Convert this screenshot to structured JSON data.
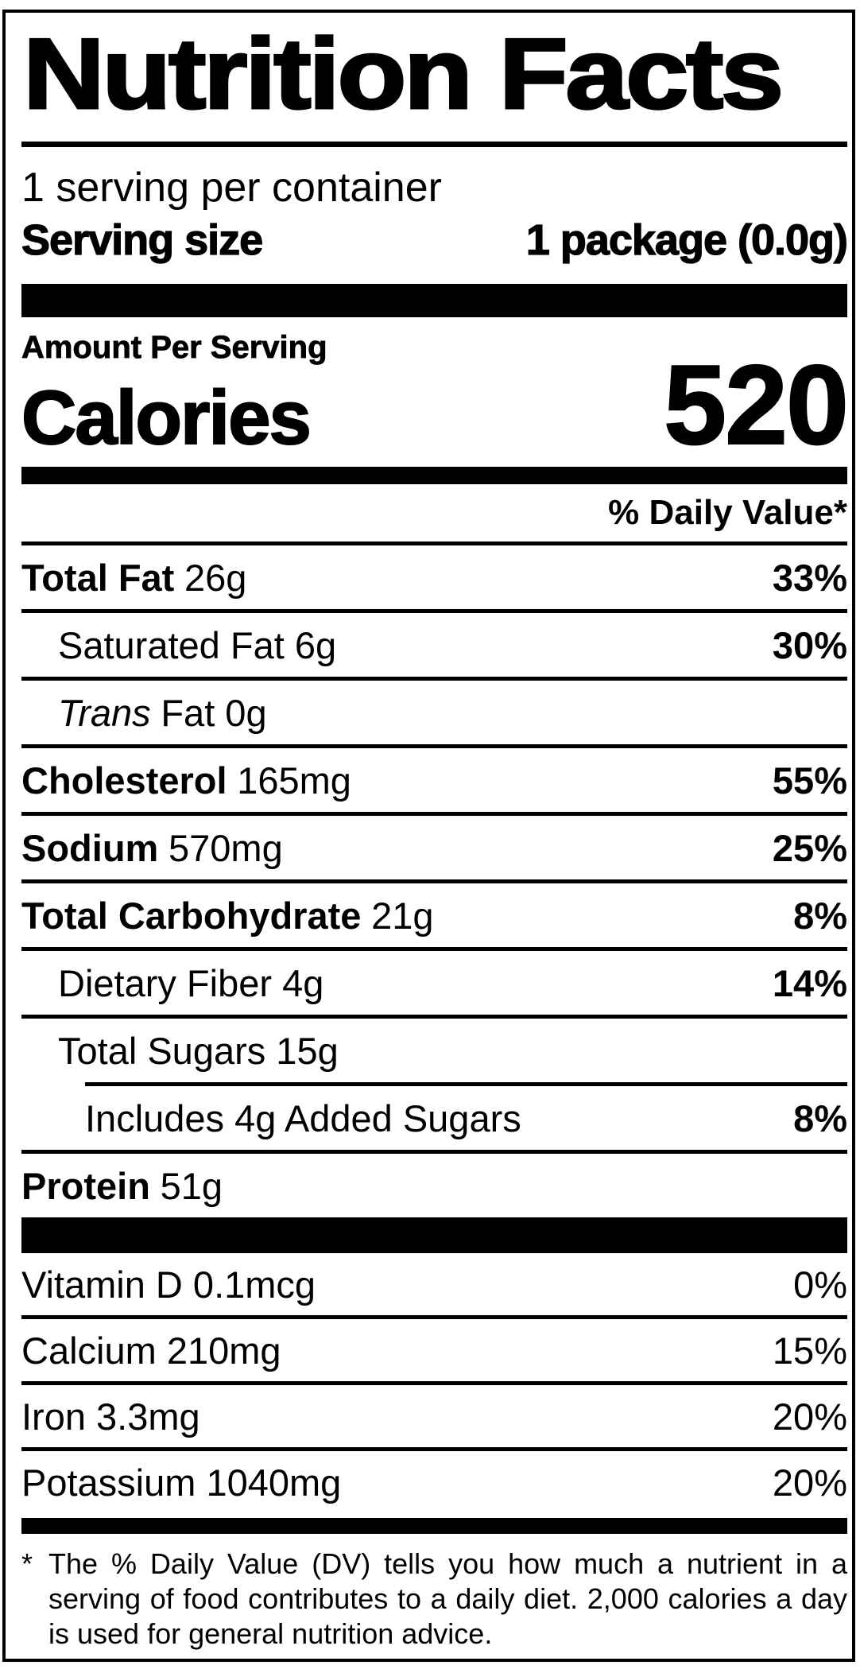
{
  "title": "Nutrition Facts",
  "serving": {
    "per_container": "1 serving per container",
    "size_label": "Serving size",
    "size_value": "1 package (0.0g)"
  },
  "calories_section": {
    "header": "Amount Per Serving",
    "label": "Calories",
    "value": "520"
  },
  "daily_value_header": "% Daily Value*",
  "rows": {
    "total_fat": {
      "name": "Total Fat",
      "amount": "26g",
      "dv": "33%"
    },
    "saturated_fat": {
      "name": "Saturated Fat 6g",
      "dv": "30%"
    },
    "trans_fat": {
      "name_italic": "Trans",
      "name_rest": "Fat 0g"
    },
    "cholesterol": {
      "name": "Cholesterol",
      "amount": "165mg",
      "dv": "55%"
    },
    "sodium": {
      "name": "Sodium",
      "amount": "570mg",
      "dv": "25%"
    },
    "total_carbohydrate": {
      "name": "Total Carbohydrate",
      "amount": "21g",
      "dv": "8%"
    },
    "dietary_fiber": {
      "name": "Dietary Fiber 4g",
      "dv": "14%"
    },
    "total_sugars": {
      "name": "Total Sugars 15g"
    },
    "added_sugars": {
      "name": "Includes 4g Added Sugars",
      "dv": "8%"
    },
    "protein": {
      "name": "Protein",
      "amount": "51g"
    },
    "vitamin_d": {
      "name": "Vitamin D 0.1mcg",
      "dv": "0%"
    },
    "calcium": {
      "name": "Calcium 210mg",
      "dv": "15%"
    },
    "iron": {
      "name": "Iron 3.3mg",
      "dv": "20%"
    },
    "potassium": {
      "name": "Potassium 1040mg",
      "dv": "20%"
    }
  },
  "footnote": {
    "marker": "*",
    "text": "The % Daily Value (DV) tells you how much a nutrient in a serving of food contributes to a daily diet. 2,000 calories a day is used for general nutrition advice."
  },
  "colors": {
    "ink": "#000000",
    "paper": "#ffffff"
  }
}
